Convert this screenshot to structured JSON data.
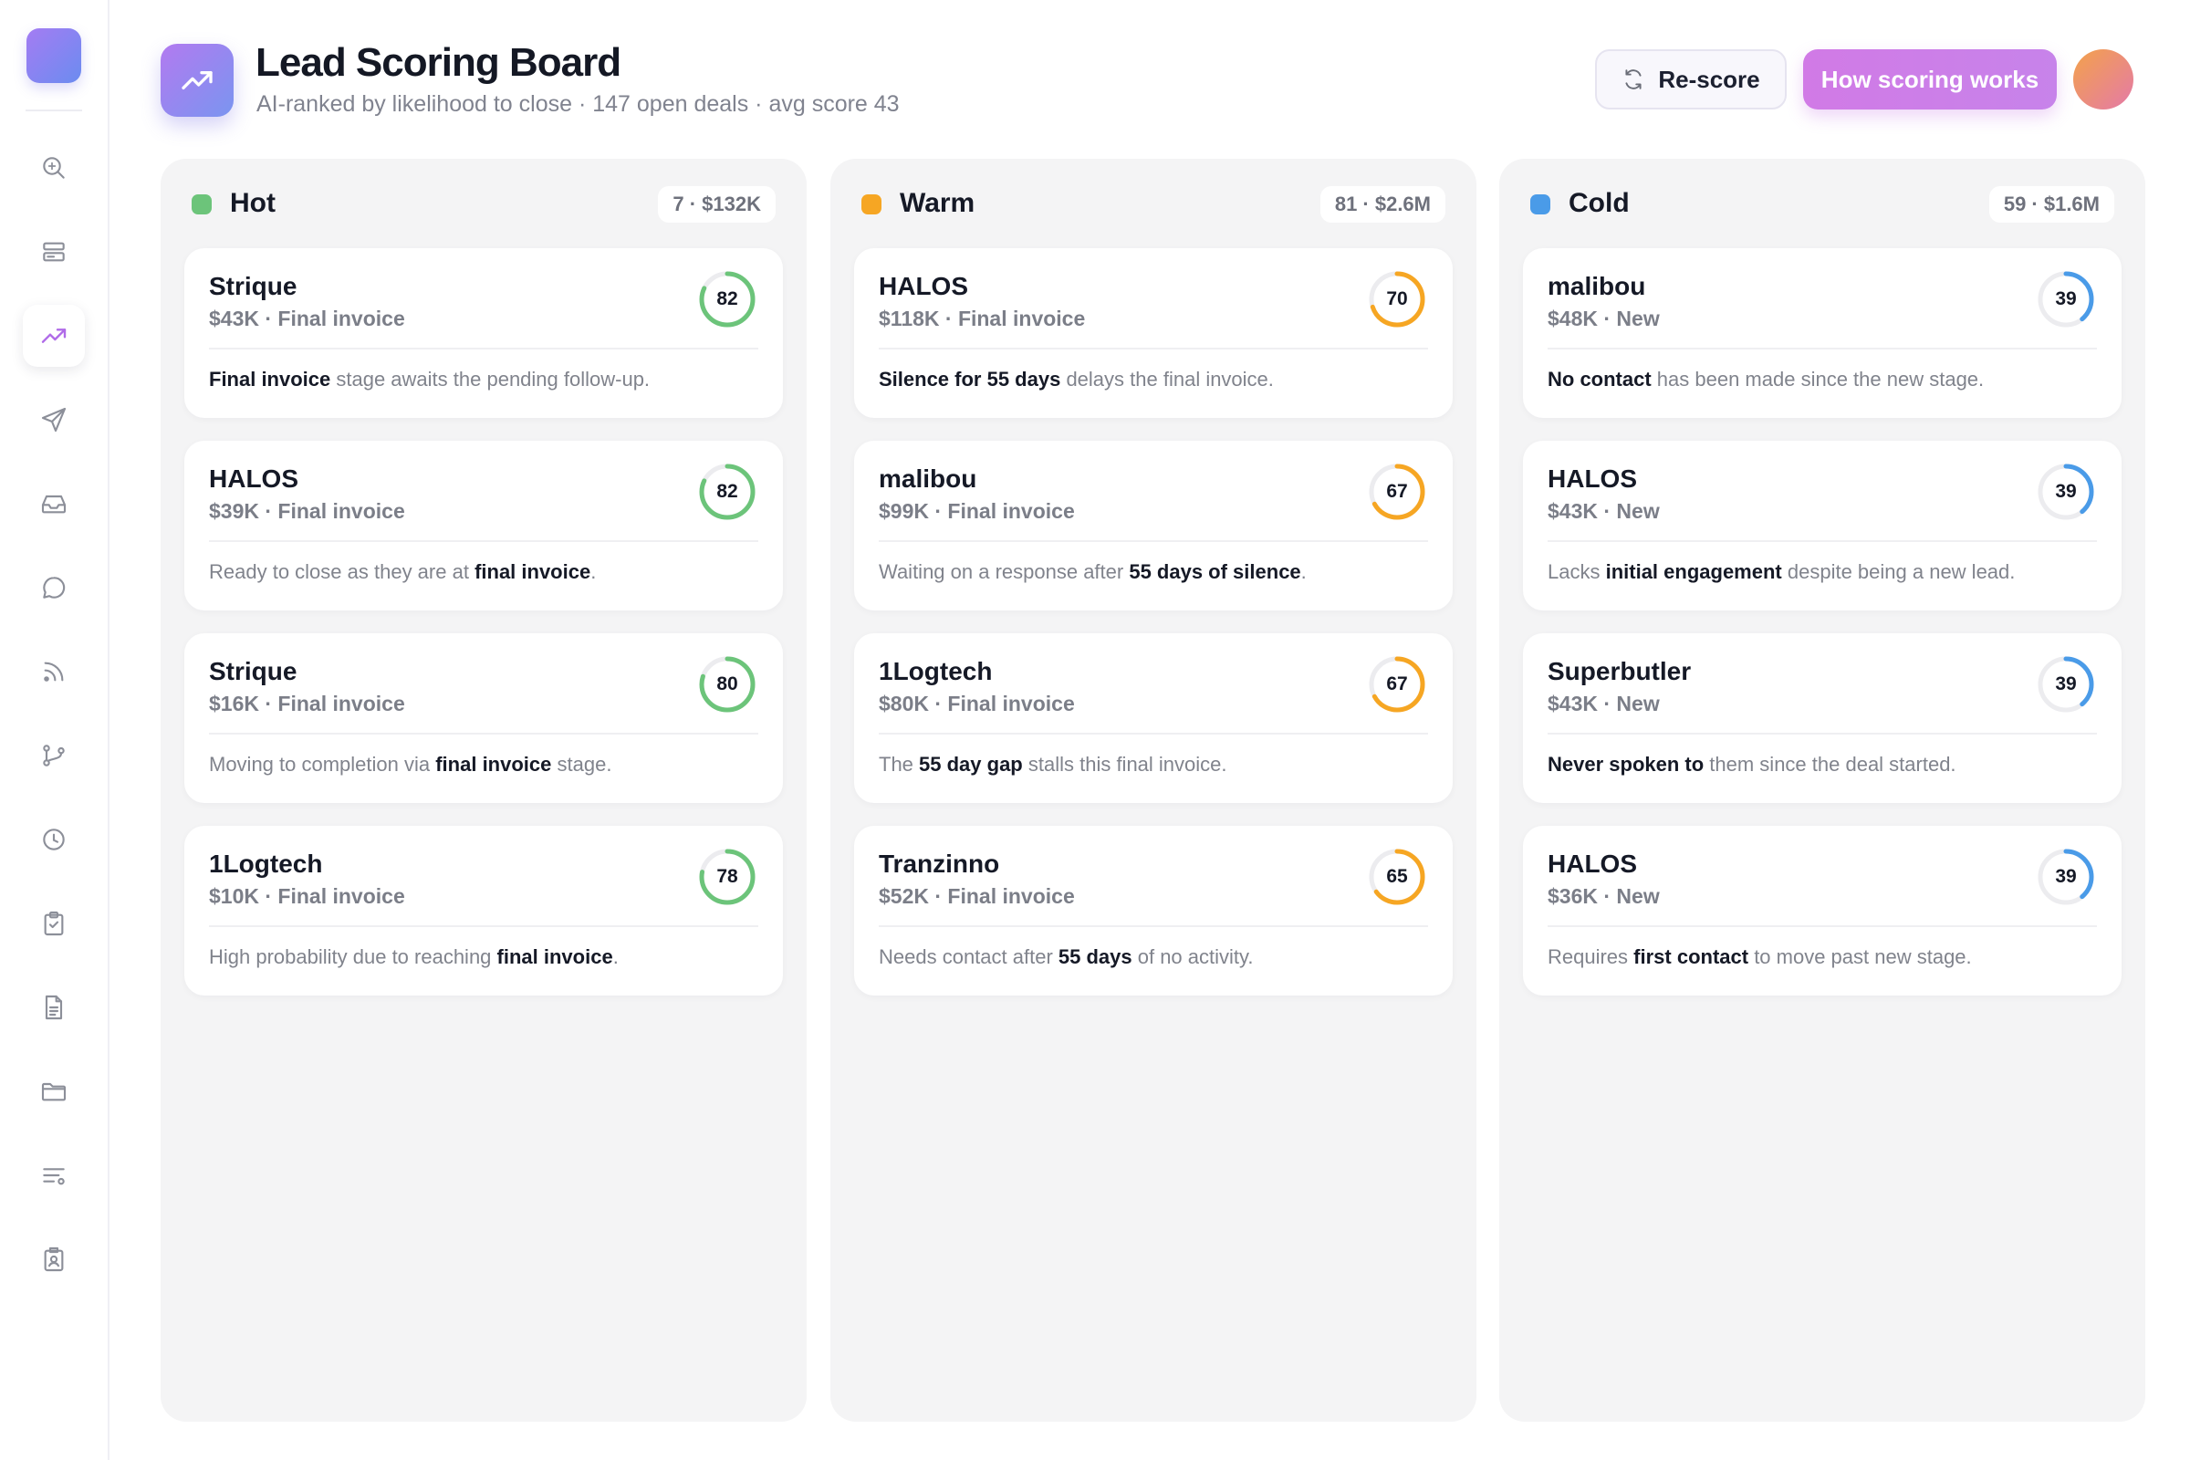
{
  "header": {
    "title": "Lead Scoring Board",
    "subtitle": "AI-ranked by likelihood to close · 147 open deals · avg score 43",
    "rescore_label": "Re-score",
    "how_label": "How scoring works"
  },
  "sidebar": {
    "items": [
      {
        "icon": "search-icon"
      },
      {
        "icon": "cards-icon"
      },
      {
        "icon": "trending-icon",
        "active": true
      },
      {
        "icon": "send-icon"
      },
      {
        "icon": "inbox-icon"
      },
      {
        "icon": "chat-icon"
      },
      {
        "icon": "feed-icon"
      },
      {
        "icon": "branch-icon"
      },
      {
        "icon": "clock-icon"
      },
      {
        "icon": "clipboard-check-icon"
      },
      {
        "icon": "document-icon"
      },
      {
        "icon": "folder-icon"
      },
      {
        "icon": "filter-list-icon"
      },
      {
        "icon": "contact-card-icon"
      }
    ]
  },
  "columns": [
    {
      "title": "Hot",
      "badge": "7 · $132K",
      "color": "#6cc47a",
      "cards": [
        {
          "name": "Strique",
          "meta": "$43K · Final invoice",
          "score": 82,
          "note": [
            {
              "b": "Final invoice"
            },
            {
              "t": " stage awaits the pending follow-up."
            }
          ]
        },
        {
          "name": "HALOS",
          "meta": "$39K · Final invoice",
          "score": 82,
          "note": [
            {
              "t": "Ready to close as they are at "
            },
            {
              "b": "final invoice"
            },
            {
              "t": "."
            }
          ]
        },
        {
          "name": "Strique",
          "meta": "$16K · Final invoice",
          "score": 80,
          "note": [
            {
              "t": "Moving to completion via "
            },
            {
              "b": "final invoice"
            },
            {
              "t": " stage."
            }
          ]
        },
        {
          "name": "1Logtech",
          "meta": "$10K · Final invoice",
          "score": 78,
          "note": [
            {
              "t": "High probability due to reaching "
            },
            {
              "b": "final invoice"
            },
            {
              "t": "."
            }
          ]
        }
      ]
    },
    {
      "title": "Warm",
      "badge": "81 · $2.6M",
      "color": "#f6a623",
      "cards": [
        {
          "name": "HALOS",
          "meta": "$118K · Final invoice",
          "score": 70,
          "note": [
            {
              "b": "Silence for 55 days"
            },
            {
              "t": " delays the final invoice."
            }
          ]
        },
        {
          "name": "malibou",
          "meta": "$99K · Final invoice",
          "score": 67,
          "note": [
            {
              "t": "Waiting on a response after "
            },
            {
              "b": "55 days of silence"
            },
            {
              "t": "."
            }
          ]
        },
        {
          "name": "1Logtech",
          "meta": "$80K · Final invoice",
          "score": 67,
          "note": [
            {
              "t": "The "
            },
            {
              "b": "55 day gap"
            },
            {
              "t": " stalls this final invoice."
            }
          ]
        },
        {
          "name": "Tranzinno",
          "meta": "$52K · Final invoice",
          "score": 65,
          "note": [
            {
              "t": "Needs contact after "
            },
            {
              "b": "55 days"
            },
            {
              "t": " of no activity."
            }
          ]
        }
      ]
    },
    {
      "title": "Cold",
      "badge": "59 · $1.6M",
      "color": "#4a9be8",
      "cards": [
        {
          "name": "malibou",
          "meta": "$48K · New",
          "score": 39,
          "note": [
            {
              "b": "No contact"
            },
            {
              "t": " has been made since the new stage."
            }
          ]
        },
        {
          "name": "HALOS",
          "meta": "$43K · New",
          "score": 39,
          "note": [
            {
              "t": "Lacks "
            },
            {
              "b": "initial engagement"
            },
            {
              "t": " despite being a new lead."
            }
          ]
        },
        {
          "name": "Superbutler",
          "meta": "$43K · New",
          "score": 39,
          "note": [
            {
              "b": "Never spoken to"
            },
            {
              "t": " them since the deal started."
            }
          ]
        },
        {
          "name": "HALOS",
          "meta": "$36K · New",
          "score": 39,
          "note": [
            {
              "t": "Requires "
            },
            {
              "b": "first contact"
            },
            {
              "t": " to move past new stage."
            }
          ]
        }
      ]
    }
  ]
}
